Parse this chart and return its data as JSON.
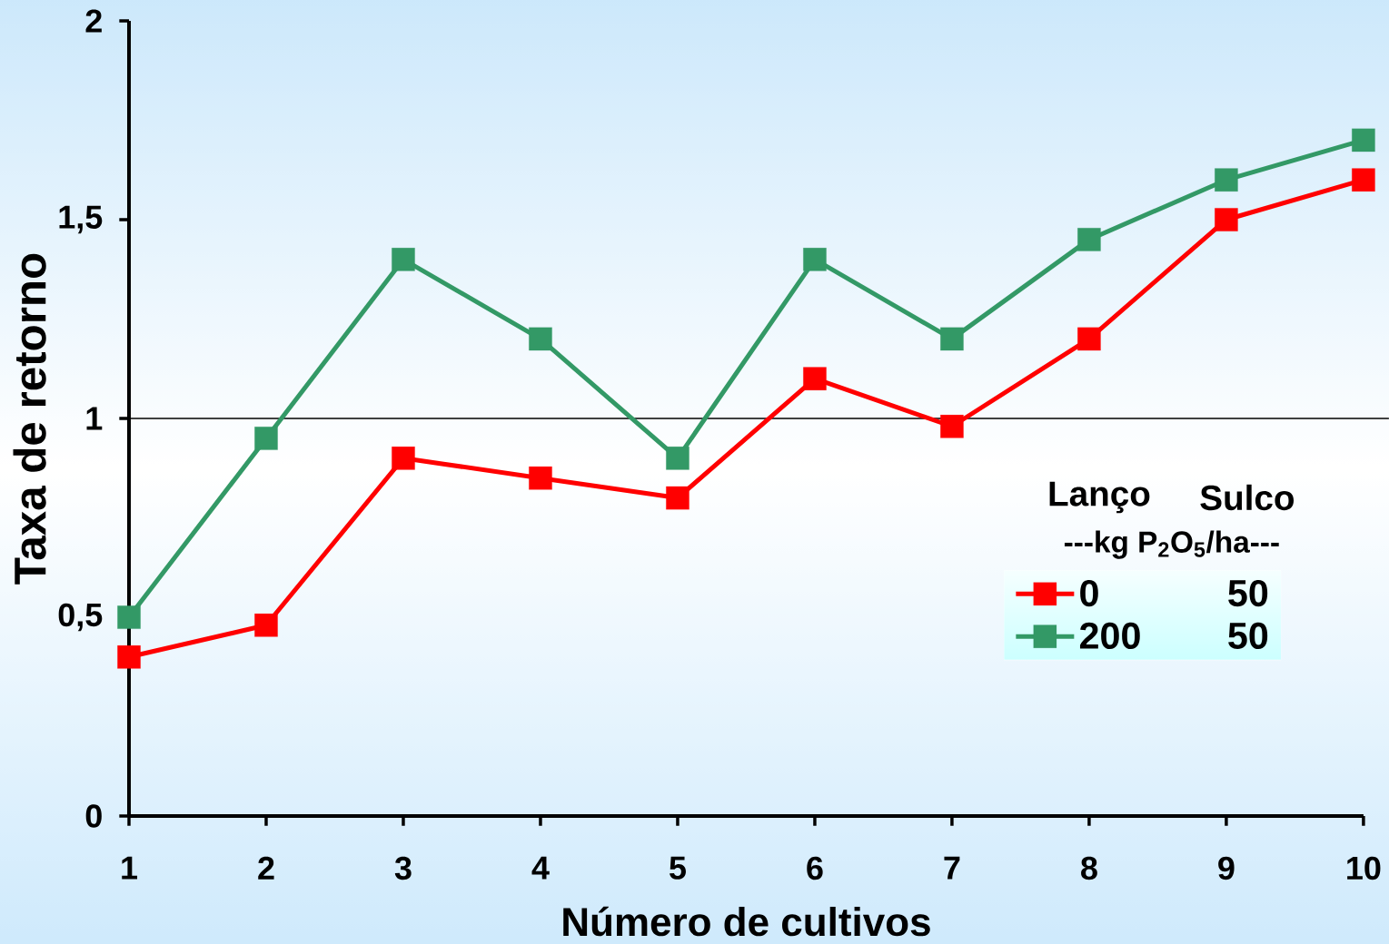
{
  "chart_data": {
    "type": "line",
    "xlabel": "Número de cultivos",
    "ylabel": "Taxa de retorno",
    "x": [
      1,
      2,
      3,
      4,
      5,
      6,
      7,
      8,
      9,
      10
    ],
    "series": [
      {
        "name": "0",
        "color": "#ff0000",
        "values": [
          0.4,
          0.48,
          0.9,
          0.85,
          0.8,
          1.1,
          0.98,
          1.2,
          1.5,
          1.6
        ]
      },
      {
        "name": "200",
        "color": "#339966",
        "values": [
          0.5,
          0.95,
          1.4,
          1.2,
          0.9,
          1.4,
          1.2,
          1.45,
          1.6,
          1.7
        ]
      }
    ],
    "xlim": [
      1,
      10
    ],
    "xticks": [
      1,
      2,
      3,
      4,
      5,
      6,
      7,
      8,
      9,
      10
    ],
    "ylim": [
      0,
      2
    ],
    "yticks": [
      0,
      {
        "value": 0.5,
        "label": "0,5"
      },
      1,
      {
        "value": 1.5,
        "label": "1,5"
      },
      2
    ],
    "ref_lines": [
      {
        "axis": "y",
        "value": 1,
        "color": "#000000"
      }
    ],
    "legend": "bottom right",
    "legend_title": "Lanço",
    "annotations": [
      "Sulco",
      "---kg P$_{2}$O$_{5}$/ha---",
      "50",
      "50"
    ],
    "marker": "square",
    "line_style": "solid"
  }
}
